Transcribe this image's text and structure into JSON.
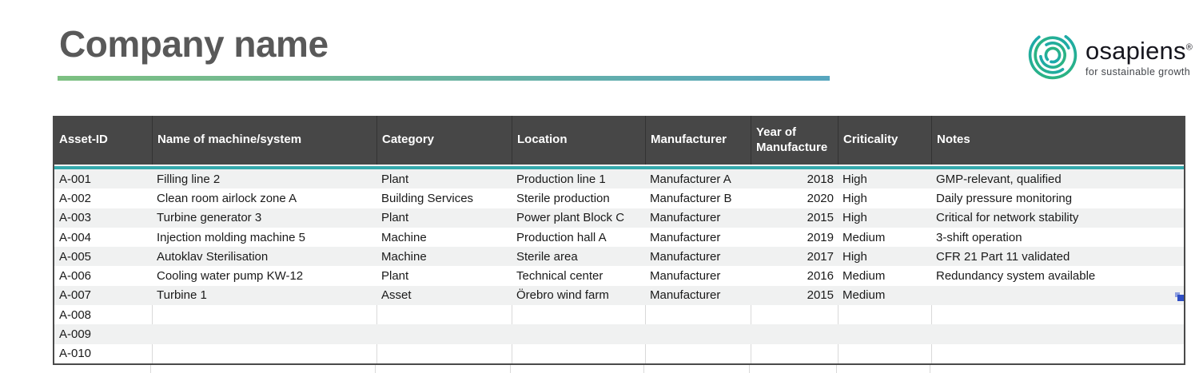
{
  "header": {
    "title": "Company name",
    "logo": {
      "brand": "osapiens",
      "registered_mark": "®",
      "tagline": "for sustainable growth"
    }
  },
  "table": {
    "columns": [
      {
        "key": "asset_id",
        "label": "Asset-ID"
      },
      {
        "key": "name",
        "label": "Name of machine/system"
      },
      {
        "key": "category",
        "label": "Category"
      },
      {
        "key": "location",
        "label": "Location"
      },
      {
        "key": "manufacturer",
        "label": "Manufacturer"
      },
      {
        "key": "year",
        "label": "Year of Manufacture"
      },
      {
        "key": "criticality",
        "label": "Criticality"
      },
      {
        "key": "notes",
        "label": "Notes"
      }
    ],
    "rows": [
      {
        "asset_id": "A-001",
        "name": "Filling line 2",
        "category": "Plant",
        "location": "Production line 1",
        "manufacturer": "Manufacturer A",
        "year": "2018",
        "criticality": "High",
        "notes": "GMP-relevant, qualified"
      },
      {
        "asset_id": "A-002",
        "name": "Clean room airlock zone A",
        "category": "Building Services",
        "location": "Sterile production",
        "manufacturer": "Manufacturer B",
        "year": "2020",
        "criticality": "High",
        "notes": "Daily pressure monitoring"
      },
      {
        "asset_id": "A-003",
        "name": "Turbine generator 3",
        "category": "Plant",
        "location": "Power plant Block C",
        "manufacturer": "Manufacturer",
        "year": "2015",
        "criticality": "High",
        "notes": "Critical for network stability"
      },
      {
        "asset_id": "A-004",
        "name": "Injection molding machine 5",
        "category": "Machine",
        "location": "Production hall A",
        "manufacturer": "Manufacturer",
        "year": "2019",
        "criticality": "Medium",
        "notes": "3-shift operation"
      },
      {
        "asset_id": "A-005",
        "name": "Autoklav Sterilisation",
        "category": "Machine",
        "location": "Sterile area",
        "manufacturer": "Manufacturer",
        "year": "2017",
        "criticality": "High",
        "notes": "CFR 21 Part 11 validated"
      },
      {
        "asset_id": "A-006",
        "name": "Cooling water pump KW-12",
        "category": "Plant",
        "location": "Technical center",
        "manufacturer": "Manufacturer",
        "year": "2016",
        "criticality": "Medium",
        "notes": "Redundancy system available"
      },
      {
        "asset_id": "A-007",
        "name": "Turbine 1",
        "category": "Asset",
        "location": "Örebro wind farm",
        "manufacturer": "Manufacturer",
        "year": "2015",
        "criticality": "Medium",
        "notes": ""
      },
      {
        "asset_id": "A-008",
        "name": "",
        "category": "",
        "location": "",
        "manufacturer": "",
        "year": "",
        "criticality": "",
        "notes": ""
      },
      {
        "asset_id": "A-009",
        "name": "",
        "category": "",
        "location": "",
        "manufacturer": "",
        "year": "",
        "criticality": "",
        "notes": ""
      },
      {
        "asset_id": "A-010",
        "name": "",
        "category": "",
        "location": "",
        "manufacturer": "",
        "year": "",
        "criticality": "",
        "notes": ""
      }
    ]
  },
  "colors": {
    "title_text": "#595959",
    "underline_green": "#7dc081",
    "underline_blue": "#57a6bf",
    "header_bg": "#474747",
    "header_text": "#ffffff",
    "teal_accent": "#35a9ac",
    "stripe_gray": "#f0f1f1",
    "grid_line": "#d9d9d9",
    "table_border": "#4a4a4a",
    "body_text": "#1a1a1a",
    "marker_blue": "#2e4ec4",
    "logo_green": "#2eb57b",
    "logo_teal": "#18a7b5"
  }
}
